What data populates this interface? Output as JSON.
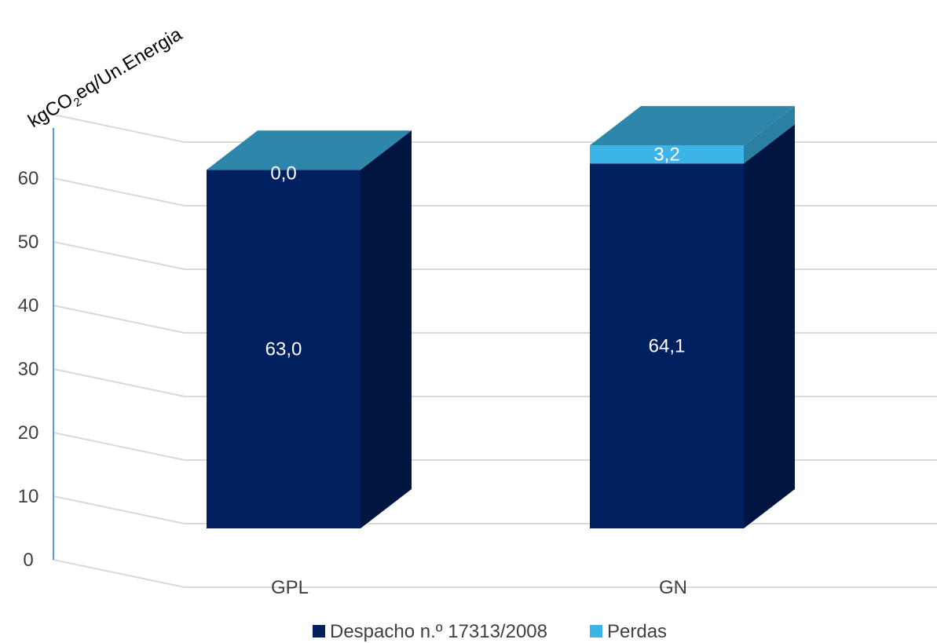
{
  "chart_data": {
    "type": "bar",
    "stacked": true,
    "three_d": true,
    "title": "",
    "xlabel": "",
    "ylabel": {
      "prefix": "kgCO",
      "subscript": "2",
      "suffix": "eq/Un.Energia"
    },
    "ylim": [
      0,
      70
    ],
    "yticks": [
      "0",
      "10",
      "20",
      "30",
      "40",
      "50",
      "60"
    ],
    "grid": true,
    "legend_position": "bottom",
    "categories": [
      "GPL",
      "GN"
    ],
    "series": [
      {
        "name": "Despacho n.º 17313/2008",
        "values": [
          63.0,
          64.1
        ],
        "labels": [
          "63,0",
          "64,1"
        ],
        "color": "#012060"
      },
      {
        "name": "Perdas",
        "values": [
          0.0,
          3.2
        ],
        "labels": [
          "0,0",
          "3,2"
        ],
        "color": "#3db4e8"
      }
    ],
    "colors": {
      "top_face": "#2e87ab",
      "side_face_dark": "#001641",
      "side_face_light": "#2a7fa3",
      "axis_line": "#5b9bd5",
      "gridline": "#d9d9d9"
    }
  }
}
